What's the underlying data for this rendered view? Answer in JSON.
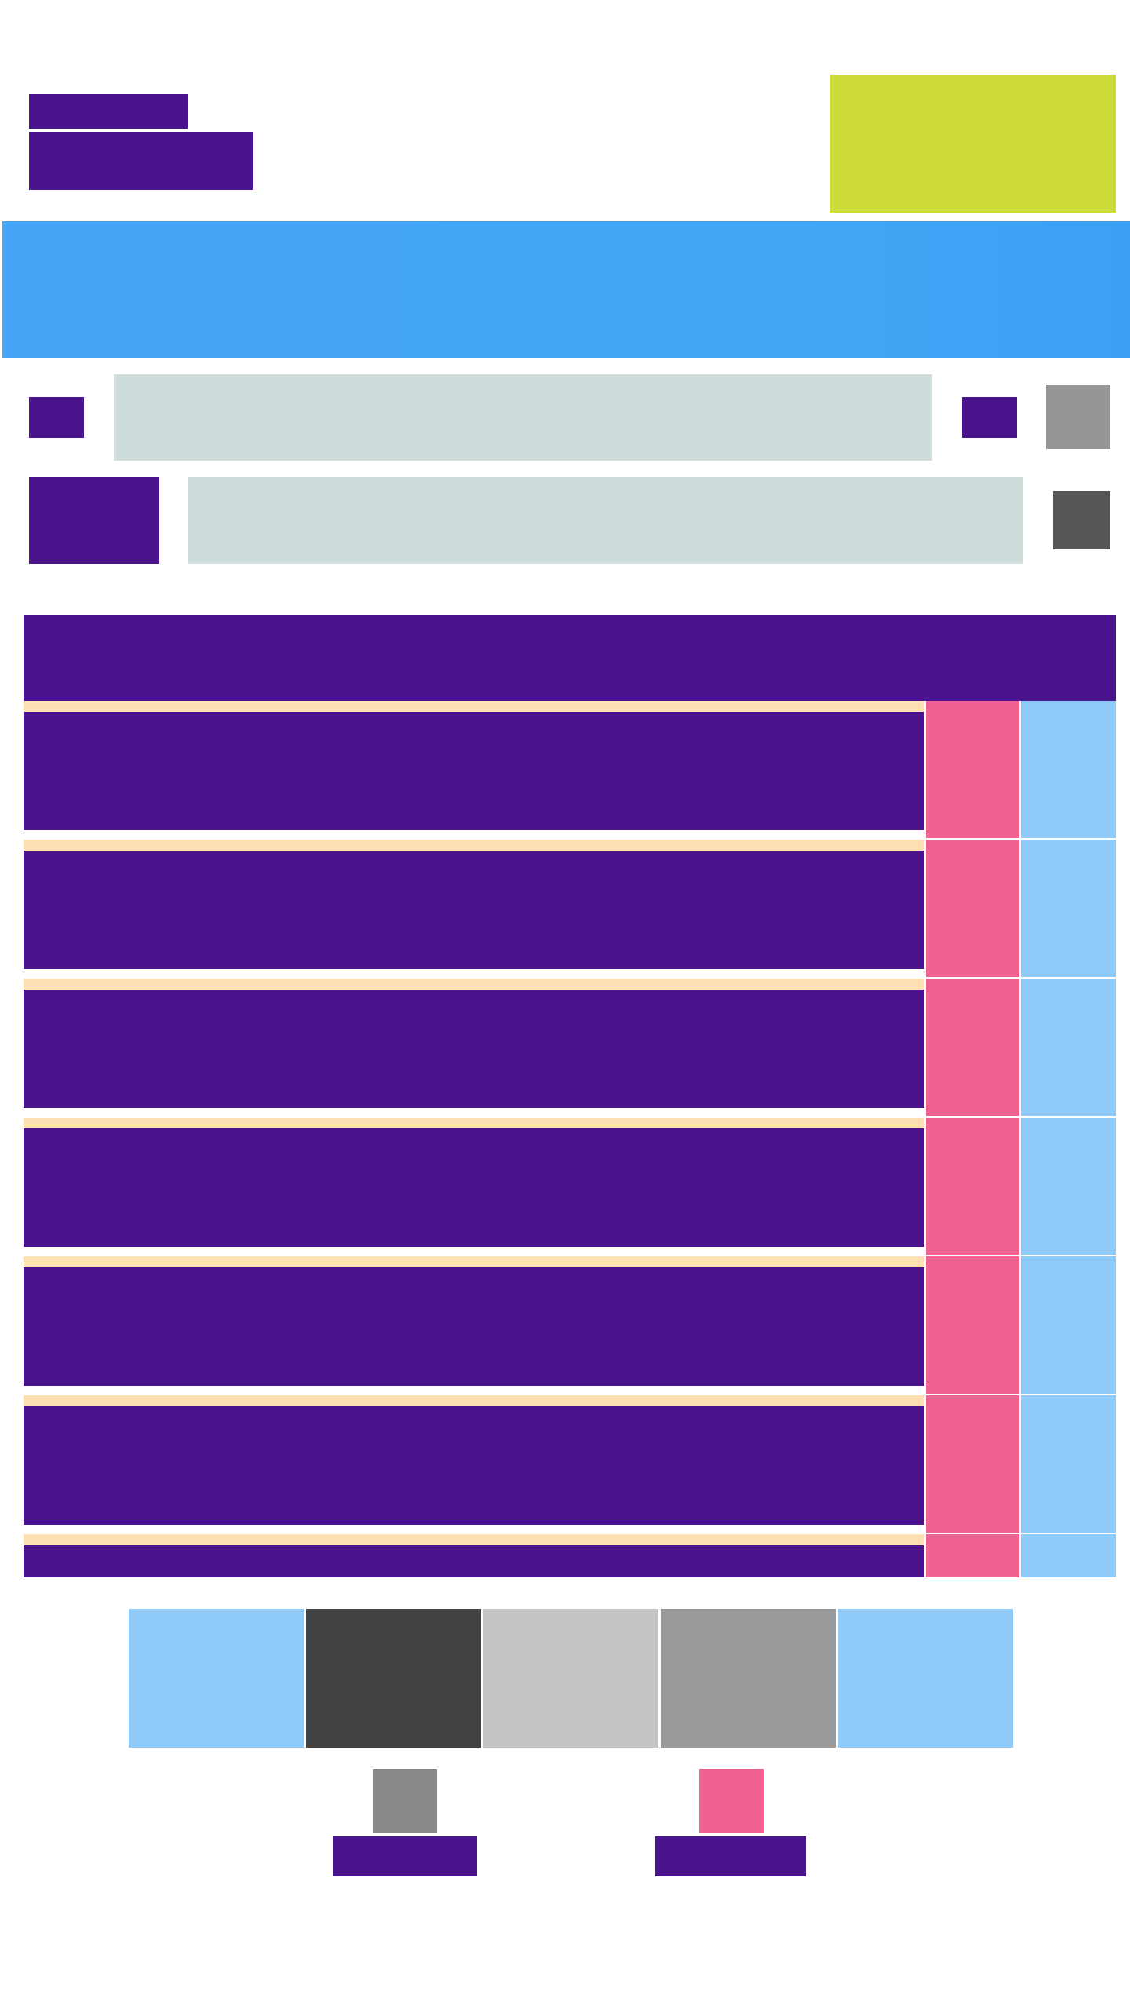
{
  "header": {
    "title": "",
    "subtitle": "",
    "action_label": ""
  },
  "banner": {
    "text": ""
  },
  "form": {
    "row1": {
      "label": "",
      "value": "",
      "action_label": "",
      "icon": "image-icon"
    },
    "row2": {
      "label": "",
      "value": "",
      "icon": "square-icon"
    }
  },
  "table": {
    "header": "",
    "rows": [
      {
        "label": "",
        "badge": "",
        "tag": ""
      },
      {
        "label": "",
        "badge": "",
        "tag": ""
      },
      {
        "label": "",
        "badge": "",
        "tag": ""
      },
      {
        "label": "",
        "badge": "",
        "tag": ""
      },
      {
        "label": "",
        "badge": "",
        "tag": ""
      },
      {
        "label": "",
        "badge": "",
        "tag": ""
      },
      {
        "label": "",
        "badge": "",
        "tag": ""
      }
    ]
  },
  "segments": [
    "",
    "",
    "",
    "",
    ""
  ],
  "bottom_nav": [
    {
      "label": "",
      "icon": "gray-icon"
    },
    {
      "label": "",
      "icon": "pink-icon"
    }
  ],
  "colors": {
    "primary": "#4a148c",
    "accent": "#cddc39",
    "banner": "#42a5f5",
    "field": "#cfdcdc",
    "badge": "#f06292",
    "tag": "#90caf9",
    "row_separator": "#ffe0b2"
  }
}
